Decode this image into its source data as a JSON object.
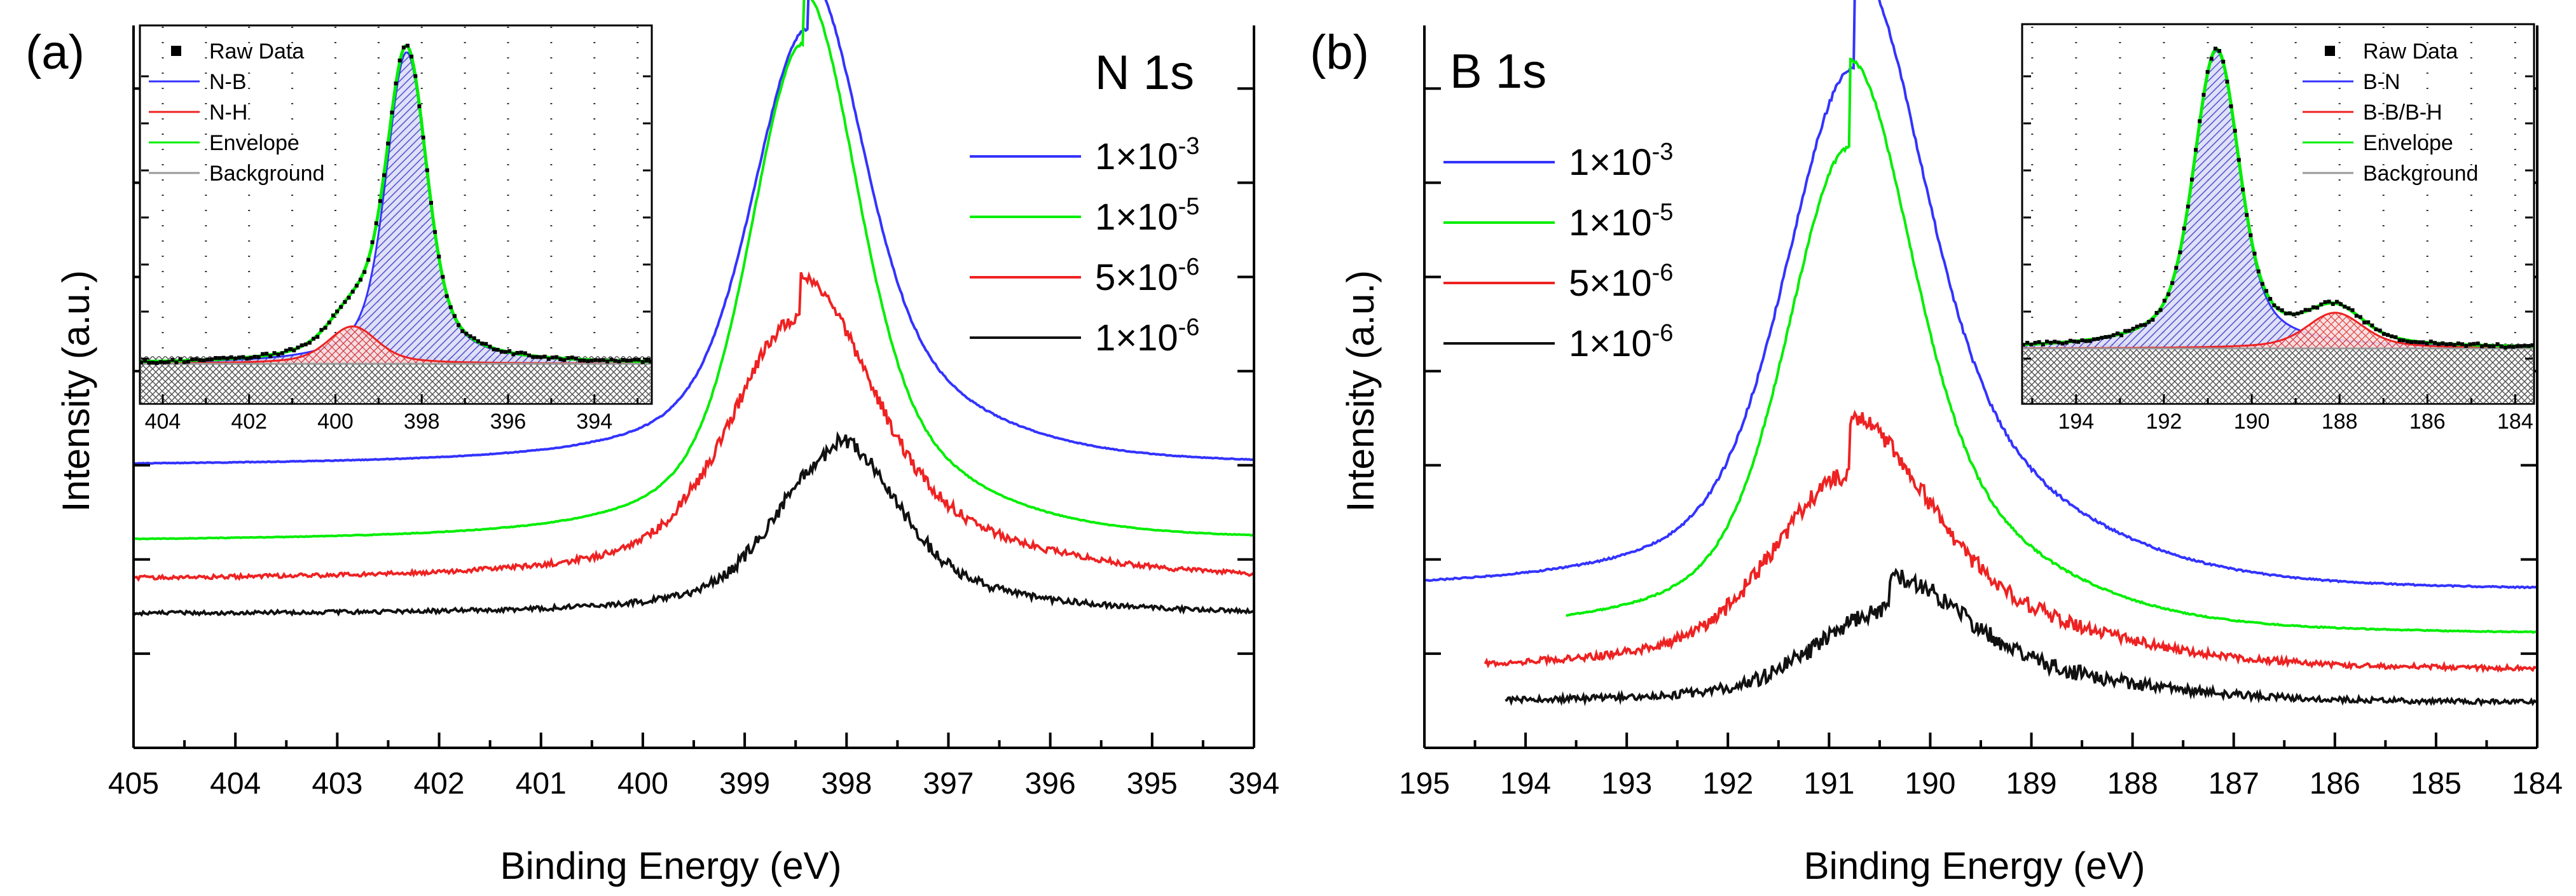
{
  "chart_data": [
    {
      "panel_label": "(a)",
      "type": "line",
      "title": "N 1s",
      "xlabel": "Binding Energy (eV)",
      "ylabel": "Intensity (a.u.)",
      "xlim": [
        405,
        394
      ],
      "x_ticks": [
        "405",
        "404",
        "403",
        "402",
        "401",
        "400",
        "399",
        "398",
        "397",
        "396",
        "395",
        "394"
      ],
      "series": [
        {
          "name": "1×10⁻³",
          "label_base": "1×10",
          "label_exp": "-3",
          "color": "#3333ff",
          "baseline": 0.39,
          "peak_height": 0.605,
          "center": 398.38,
          "width": 0.72,
          "shoulder": 0.12,
          "noise": 0.002,
          "x_start": 405
        },
        {
          "name": "1×10⁻⁵",
          "label_base": "1×10",
          "label_exp": "-5",
          "color": "#00ee00",
          "baseline": 0.285,
          "peak_height": 0.69,
          "center": 398.42,
          "width": 0.7,
          "shoulder": 0.1,
          "noise": 0.002,
          "x_start": 405
        },
        {
          "name": "5×10⁻⁶",
          "label_base": "5×10",
          "label_exp": "-6",
          "color": "#ee2222",
          "baseline": 0.232,
          "peak_height": 0.365,
          "center": 398.45,
          "width": 0.9,
          "shoulder": 0.15,
          "noise": 0.012,
          "x_start": 405
        },
        {
          "name": "1×10⁻⁶",
          "label_base": "1×10",
          "label_exp": "-6",
          "color": "#111111",
          "baseline": 0.185,
          "peak_height": 0.225,
          "center": 398.1,
          "width": 0.78,
          "shoulder": 0.08,
          "noise": 0.012,
          "x_start": 405
        }
      ],
      "inset": {
        "xlim": [
          404.5,
          392.7
        ],
        "x_ticks": [
          "404",
          "402",
          "400",
          "398",
          "396",
          "394"
        ],
        "legend": [
          {
            "label": "Raw Data",
            "kind": "marker",
            "color": "#000000"
          },
          {
            "label": "N-B",
            "kind": "line",
            "color": "#3333ff"
          },
          {
            "label": "N-H",
            "kind": "line",
            "color": "#ee2222"
          },
          {
            "label": "Envelope",
            "kind": "line",
            "color": "#00ee00"
          },
          {
            "label": "Background",
            "kind": "line",
            "color": "#999999"
          }
        ],
        "peaks": [
          {
            "name": "N-B",
            "center": 398.35,
            "height": 1.0,
            "width": 0.62,
            "color": "#3333ff"
          },
          {
            "name": "N-H",
            "center": 399.6,
            "height": 0.12,
            "width": 0.75,
            "color": "#ee2222"
          }
        ],
        "background_level": 0.04,
        "ylim": [
          -0.14,
          1.08
        ]
      }
    },
    {
      "panel_label": "(b)",
      "type": "line",
      "title": "B 1s",
      "xlabel": "Binding Energy (eV)",
      "ylabel": "Intensity (a.u.)",
      "xlim": [
        195,
        184
      ],
      "x_ticks": [
        "195",
        "194",
        "193",
        "192",
        "191",
        "190",
        "189",
        "188",
        "187",
        "186",
        "185",
        "184"
      ],
      "series": [
        {
          "name": "1×10⁻³",
          "label_base": "1×10",
          "label_exp": "-3",
          "color": "#3333ff",
          "baseline": 0.215,
          "peak_height": 0.725,
          "center": 190.75,
          "width": 0.9,
          "shoulder": 0.2,
          "noise": 0.004,
          "x_start": 195
        },
        {
          "name": "1×10⁻⁵",
          "label_base": "1×10",
          "label_exp": "-5",
          "color": "#00ee00",
          "baseline": 0.155,
          "peak_height": 0.675,
          "center": 190.8,
          "width": 0.82,
          "shoulder": 0.18,
          "noise": 0.003,
          "x_start": 193.6
        },
        {
          "name": "5×10⁻⁶",
          "label_base": "5×10",
          "label_exp": "-6",
          "color": "#ee2222",
          "baseline": 0.107,
          "peak_height": 0.27,
          "center": 190.8,
          "width": 1.0,
          "shoulder": 0.3,
          "noise": 0.015,
          "x_start": 194.4
        },
        {
          "name": "1×10⁻⁶",
          "label_base": "1×10",
          "label_exp": "-6",
          "color": "#111111",
          "baseline": 0.062,
          "peak_height": 0.13,
          "center": 190.4,
          "width": 0.95,
          "shoulder": 0.35,
          "noise": 0.015,
          "x_start": 194.2
        }
      ],
      "inset": {
        "xlim": [
          195.2,
          183.6
        ],
        "x_ticks": [
          "194",
          "192",
          "190",
          "188",
          "186",
          "184"
        ],
        "legend": [
          {
            "label": "Raw Data",
            "kind": "marker",
            "color": "#000000"
          },
          {
            "label": "B-N",
            "kind": "line",
            "color": "#3333ff"
          },
          {
            "label": "B-B/B-H",
            "kind": "line",
            "color": "#ee2222"
          },
          {
            "label": "Envelope",
            "kind": "line",
            "color": "#00ee00"
          },
          {
            "label": "Background",
            "kind": "line",
            "color": "#999999"
          }
        ],
        "peaks": [
          {
            "name": "B-N",
            "center": 190.8,
            "height": 1.0,
            "width": 0.68,
            "color": "#3333ff"
          },
          {
            "name": "B-B/B-H",
            "center": 188.1,
            "height": 0.12,
            "width": 0.85,
            "color": "#ee2222"
          }
        ],
        "background_level": 0.07,
        "ylim": [
          -0.14,
          1.08
        ]
      }
    }
  ]
}
